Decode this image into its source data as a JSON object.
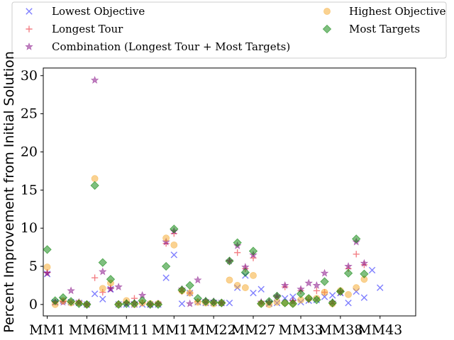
{
  "chart_data": {
    "type": "scatter",
    "ylabel": "Percent Improvement from Initial Solution",
    "xlabel": "",
    "ylim": [
      -1.5,
      31
    ],
    "yticks": [
      0,
      5,
      10,
      15,
      20,
      25,
      30
    ],
    "grid": false,
    "legend_position": "top (above plot), 2 columns",
    "x_range": [
      0.5,
      47.5
    ],
    "xtick_labels": [
      {
        "label": "MM1",
        "x": 1
      },
      {
        "label": "MM6",
        "x": 6
      },
      {
        "label": "MM11",
        "x": 11
      },
      {
        "label": "MM17",
        "x": 17
      },
      {
        "label": "MM22",
        "x": 22
      },
      {
        "label": "MM27",
        "x": 27
      },
      {
        "label": "MM33",
        "x": 33
      },
      {
        "label": "MM38",
        "x": 38
      },
      {
        "label": "MM43",
        "x": 43
      }
    ],
    "series": [
      {
        "name": "Lowest Objective",
        "marker": "x",
        "color": "#0000ff",
        "points": [
          [
            1,
            4.0
          ],
          [
            2,
            0.3
          ],
          [
            3,
            0.5
          ],
          [
            4,
            0.3
          ],
          [
            5,
            0.2
          ],
          [
            6,
            0.0
          ],
          [
            7,
            1.4
          ],
          [
            8,
            0.7
          ],
          [
            9,
            2.0
          ],
          [
            10,
            0.0
          ],
          [
            11,
            0.0
          ],
          [
            12,
            0.0
          ],
          [
            13,
            0.0
          ],
          [
            14,
            0.0
          ],
          [
            15,
            0.0
          ],
          [
            16,
            3.5
          ],
          [
            17,
            6.5
          ],
          [
            18,
            0.1
          ],
          [
            19,
            1.5
          ],
          [
            20,
            0.3
          ],
          [
            21,
            0.2
          ],
          [
            22,
            0.2
          ],
          [
            23,
            0.2
          ],
          [
            24,
            0.2
          ],
          [
            25,
            2.2
          ],
          [
            26,
            3.8
          ],
          [
            27,
            1.5
          ],
          [
            28,
            2.0
          ],
          [
            29,
            0.1
          ],
          [
            30,
            0.2
          ],
          [
            31,
            0.8
          ],
          [
            32,
            1.0
          ],
          [
            33,
            0.3
          ],
          [
            34,
            0.5
          ],
          [
            35,
            0.6
          ],
          [
            36,
            1.0
          ],
          [
            37,
            1.2
          ],
          [
            38,
            1.5
          ],
          [
            39,
            0.2
          ],
          [
            40,
            1.7
          ],
          [
            41,
            0.9
          ],
          [
            42,
            4.5
          ],
          [
            43,
            2.2
          ]
        ]
      },
      {
        "name": "Longest Tour",
        "marker": "+",
        "color": "#e8000b",
        "points": [
          [
            1,
            4.2
          ],
          [
            2,
            0.3
          ],
          [
            3,
            0.4
          ],
          [
            4,
            0.3
          ],
          [
            5,
            0.2
          ],
          [
            6,
            0.0
          ],
          [
            7,
            3.5
          ],
          [
            8,
            1.6
          ],
          [
            9,
            2.2
          ],
          [
            10,
            0.1
          ],
          [
            11,
            0.2
          ],
          [
            12,
            0.8
          ],
          [
            13,
            0.2
          ],
          [
            14,
            0.0
          ],
          [
            15,
            0.1
          ],
          [
            16,
            8.0
          ],
          [
            17,
            9.3
          ],
          [
            18,
            1.7
          ],
          [
            19,
            1.5
          ],
          [
            20,
            0.4
          ],
          [
            21,
            0.3
          ],
          [
            22,
            0.2
          ],
          [
            23,
            0.2
          ],
          [
            24,
            5.7
          ],
          [
            25,
            6.8
          ],
          [
            26,
            4.7
          ],
          [
            27,
            6.1
          ],
          [
            28,
            0.2
          ],
          [
            29,
            0.3
          ],
          [
            30,
            1.0
          ],
          [
            31,
            2.3
          ],
          [
            32,
            0.5
          ],
          [
            33,
            1.8
          ],
          [
            34,
            0.6
          ],
          [
            35,
            1.8
          ],
          [
            36,
            1.6
          ],
          [
            37,
            0.1
          ],
          [
            38,
            1.8
          ],
          [
            39,
            4.7
          ],
          [
            40,
            6.6
          ],
          [
            41,
            5.2
          ]
        ]
      },
      {
        "name": "Combination (Longest Tour + Most Targets)",
        "marker": "*",
        "color": "#800080",
        "points": [
          [
            1,
            4.1
          ],
          [
            2,
            0.3
          ],
          [
            3,
            0.3
          ],
          [
            4,
            1.8
          ],
          [
            5,
            0.3
          ],
          [
            6,
            0.0
          ],
          [
            7,
            29.4
          ],
          [
            8,
            4.3
          ],
          [
            9,
            2.0
          ],
          [
            10,
            2.3
          ],
          [
            11,
            0.2
          ],
          [
            12,
            0.2
          ],
          [
            13,
            1.2
          ],
          [
            14,
            0.0
          ],
          [
            15,
            0.1
          ],
          [
            16,
            8.2
          ],
          [
            17,
            9.6
          ],
          [
            18,
            2.0
          ],
          [
            19,
            0.1
          ],
          [
            20,
            3.2
          ],
          [
            21,
            0.5
          ],
          [
            22,
            0.4
          ],
          [
            23,
            0.2
          ],
          [
            24,
            5.7
          ],
          [
            25,
            7.7
          ],
          [
            26,
            4.9
          ],
          [
            27,
            6.5
          ],
          [
            28,
            0.3
          ],
          [
            29,
            0.3
          ],
          [
            30,
            1.1
          ],
          [
            31,
            2.5
          ],
          [
            32,
            0.4
          ],
          [
            33,
            2.0
          ],
          [
            34,
            2.8
          ],
          [
            35,
            2.5
          ],
          [
            36,
            4.1
          ],
          [
            37,
            0.3
          ],
          [
            38,
            1.6
          ],
          [
            39,
            5.0
          ],
          [
            40,
            8.2
          ],
          [
            41,
            5.4
          ]
        ]
      },
      {
        "name": "Highest Objective",
        "marker": "o",
        "color": "#f5a623",
        "points": [
          [
            1,
            4.9
          ],
          [
            2,
            0.0
          ],
          [
            3,
            0.5
          ],
          [
            4,
            0.2
          ],
          [
            5,
            0.2
          ],
          [
            6,
            0.0
          ],
          [
            7,
            16.5
          ],
          [
            8,
            2.1
          ],
          [
            9,
            2.8
          ],
          [
            10,
            0.0
          ],
          [
            11,
            0.5
          ],
          [
            12,
            0.0
          ],
          [
            13,
            0.2
          ],
          [
            14,
            0.1
          ],
          [
            15,
            0.1
          ],
          [
            16,
            8.7
          ],
          [
            17,
            7.8
          ],
          [
            18,
            1.8
          ],
          [
            19,
            1.5
          ],
          [
            20,
            0.3
          ],
          [
            21,
            0.2
          ],
          [
            22,
            0.1
          ],
          [
            23,
            0.2
          ],
          [
            24,
            3.2
          ],
          [
            25,
            2.5
          ],
          [
            26,
            2.2
          ],
          [
            27,
            3.8
          ],
          [
            28,
            0.1
          ],
          [
            29,
            0.0
          ],
          [
            30,
            0.3
          ],
          [
            31,
            0.2
          ],
          [
            32,
            0.1
          ],
          [
            33,
            0.6
          ],
          [
            34,
            0.8
          ],
          [
            35,
            0.8
          ],
          [
            36,
            1.6
          ],
          [
            37,
            0.1
          ],
          [
            38,
            1.8
          ],
          [
            39,
            1.3
          ],
          [
            40,
            2.2
          ],
          [
            41,
            3.3
          ]
        ]
      },
      {
        "name": "Most Targets",
        "marker": "D",
        "color": "#008000",
        "points": [
          [
            1,
            7.2
          ],
          [
            2,
            0.5
          ],
          [
            3,
            0.9
          ],
          [
            4,
            0.4
          ],
          [
            5,
            0.1
          ],
          [
            6,
            0.0
          ],
          [
            7,
            15.6
          ],
          [
            8,
            5.5
          ],
          [
            9,
            3.3
          ],
          [
            10,
            0.0
          ],
          [
            11,
            0.1
          ],
          [
            12,
            0.1
          ],
          [
            13,
            0.5
          ],
          [
            14,
            0.0
          ],
          [
            15,
            0.0
          ],
          [
            16,
            5.0
          ],
          [
            17,
            9.9
          ],
          [
            18,
            1.9
          ],
          [
            19,
            2.5
          ],
          [
            20,
            0.8
          ],
          [
            21,
            0.4
          ],
          [
            22,
            0.3
          ],
          [
            23,
            0.2
          ],
          [
            24,
            5.7
          ],
          [
            25,
            8.1
          ],
          [
            26,
            4.2
          ],
          [
            27,
            7.0
          ],
          [
            28,
            0.1
          ],
          [
            29,
            0.4
          ],
          [
            30,
            1.1
          ],
          [
            31,
            0.2
          ],
          [
            32,
            0.1
          ],
          [
            33,
            1.4
          ],
          [
            34,
            0.8
          ],
          [
            35,
            0.6
          ],
          [
            36,
            3.0
          ],
          [
            37,
            0.2
          ],
          [
            38,
            1.7
          ],
          [
            39,
            4.1
          ],
          [
            40,
            8.6
          ],
          [
            41,
            4.0
          ]
        ]
      }
    ]
  }
}
